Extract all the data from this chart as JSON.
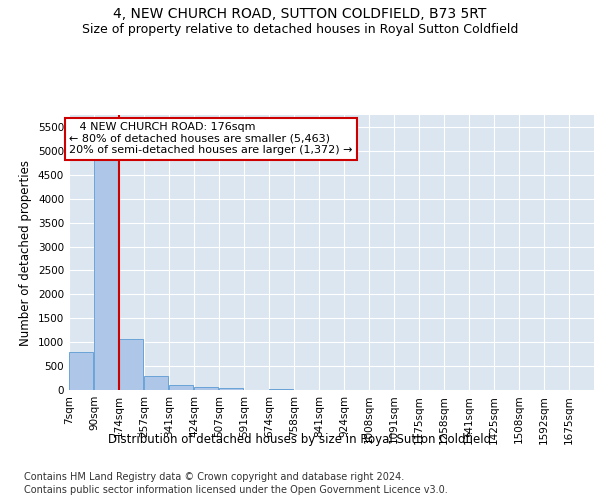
{
  "title": "4, NEW CHURCH ROAD, SUTTON COLDFIELD, B73 5RT",
  "subtitle": "Size of property relative to detached houses in Royal Sutton Coldfield",
  "xlabel": "Distribution of detached houses by size in Royal Sutton Coldfield",
  "ylabel": "Number of detached properties",
  "footer_line1": "Contains HM Land Registry data © Crown copyright and database right 2024.",
  "footer_line2": "Contains public sector information licensed under the Open Government Licence v3.0.",
  "annotation_line1": "   4 NEW CHURCH ROAD: 176sqm",
  "annotation_line2": "← 80% of detached houses are smaller (5,463)",
  "annotation_line3": "20% of semi-detached houses are larger (1,372) →",
  "bins": [
    7,
    90,
    174,
    257,
    341,
    424,
    507,
    591,
    674,
    758,
    841,
    924,
    1008,
    1091,
    1175,
    1258,
    1341,
    1425,
    1508,
    1592,
    1675
  ],
  "bin_labels": [
    "7sqm",
    "90sqm",
    "174sqm",
    "257sqm",
    "341sqm",
    "424sqm",
    "507sqm",
    "591sqm",
    "674sqm",
    "758sqm",
    "841sqm",
    "924sqm",
    "1008sqm",
    "1091sqm",
    "1175sqm",
    "1258sqm",
    "1341sqm",
    "1425sqm",
    "1508sqm",
    "1592sqm",
    "1675sqm"
  ],
  "counts": [
    800,
    5463,
    1072,
    290,
    100,
    55,
    40,
    0,
    30,
    0,
    0,
    0,
    0,
    0,
    0,
    0,
    0,
    0,
    0,
    0
  ],
  "bar_color": "#aec6e8",
  "bar_edge_color": "#5b9bd5",
  "redline_color": "#cc0000",
  "ylim": [
    0,
    5750
  ],
  "yticks": [
    0,
    500,
    1000,
    1500,
    2000,
    2500,
    3000,
    3500,
    4000,
    4500,
    5000,
    5500
  ],
  "background_color": "#dce6f1",
  "title_fontsize": 10,
  "subtitle_fontsize": 9,
  "axis_label_fontsize": 8.5,
  "tick_fontsize": 7.5,
  "annotation_fontsize": 8,
  "footer_fontsize": 7
}
